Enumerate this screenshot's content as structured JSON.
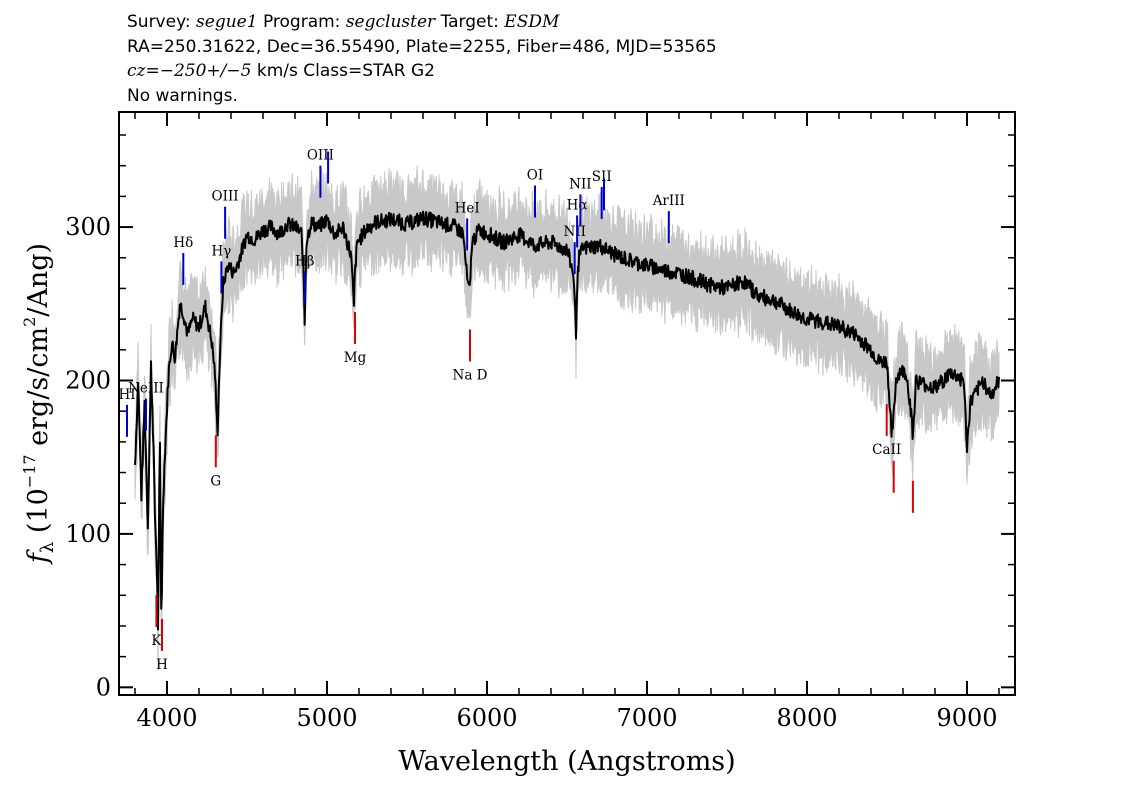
{
  "header": {
    "survey_label": "Survey:",
    "survey": "segue1",
    "program_label": "Program:",
    "program": "segcluster",
    "target_label": "Target:",
    "target": "ESDM",
    "line2": "RA=250.31622, Dec=36.55490, Plate=2255, Fiber=486, MJD=53565",
    "cz_label": "cz=",
    "cz_value": "−250+/−5",
    "cz_unit": "km/s Class=STAR G2",
    "warnings": "No warnings."
  },
  "chart_data": {
    "type": "line",
    "xlabel": "Wavelength (Angstroms)",
    "ylabel": "f_λ (10^-17 erg/s/cm^2/Ang)",
    "xlim": [
      3700,
      9300
    ],
    "ylim": [
      -5,
      375
    ],
    "x_ticks": [
      4000,
      5000,
      6000,
      7000,
      8000,
      9000
    ],
    "y_ticks": [
      0,
      100,
      200,
      300
    ],
    "colors": {
      "flux": "#000000",
      "error": "#c8c8c8",
      "emission": "#0000cc",
      "absorption": "#dd0000"
    },
    "series": [
      {
        "role": "flux",
        "x": [
          3800,
          3820,
          3840,
          3860,
          3880,
          3900,
          3915,
          3925,
          3935,
          3945,
          3955,
          3965,
          3975,
          3990,
          4010,
          4030,
          4050,
          4080,
          4100,
          4130,
          4160,
          4200,
          4240,
          4280,
          4300,
          4315,
          4330,
          4350,
          4380,
          4420,
          4460,
          4500,
          4550,
          4600,
          4650,
          4700,
          4750,
          4800,
          4840,
          4855,
          4861,
          4870,
          4900,
          4950,
          5000,
          5050,
          5100,
          5150,
          5168,
          5175,
          5190,
          5250,
          5300,
          5400,
          5500,
          5600,
          5700,
          5800,
          5850,
          5880,
          5893,
          5905,
          5950,
          6000,
          6100,
          6200,
          6300,
          6400,
          6500,
          6540,
          6556,
          6563,
          6575,
          6600,
          6700,
          6800,
          6900,
          7000,
          7100,
          7200,
          7300,
          7400,
          7500,
          7600,
          7700,
          7800,
          7900,
          8000,
          8100,
          8200,
          8300,
          8400,
          8450,
          8500,
          8530,
          8542,
          8555,
          8580,
          8620,
          8650,
          8662,
          8680,
          8720,
          8800,
          8900,
          8980,
          9000,
          9020,
          9100,
          9150,
          9200
        ],
        "y": [
          145,
          200,
          125,
          185,
          105,
          210,
          160,
          110,
          85,
          35,
          170,
          40,
          120,
          160,
          205,
          225,
          215,
          250,
          245,
          230,
          240,
          235,
          248,
          225,
          205,
          165,
          215,
          262,
          275,
          270,
          282,
          295,
          292,
          298,
          300,
          296,
          302,
          300,
          296,
          265,
          232,
          290,
          303,
          300,
          305,
          295,
          300,
          282,
          248,
          272,
          290,
          299,
          303,
          305,
          302,
          306,
          303,
          300,
          296,
          262,
          258,
          290,
          298,
          296,
          290,
          295,
          288,
          290,
          285,
          270,
          232,
          262,
          280,
          286,
          288,
          282,
          278,
          275,
          272,
          270,
          266,
          262,
          260,
          265,
          255,
          252,
          245,
          240,
          238,
          235,
          230,
          220,
          212,
          212,
          165,
          175,
          200,
          206,
          205,
          180,
          162,
          200,
          198,
          195,
          205,
          200,
          155,
          185,
          200,
          190,
          200
        ]
      }
    ],
    "lines": [
      {
        "label": "HI",
        "wavelength": 3750,
        "type": "emission"
      },
      {
        "label": "NeIII",
        "wavelength": 3869,
        "type": "emission"
      },
      {
        "label": "Hδ",
        "wavelength": 4102,
        "type": "emission"
      },
      {
        "label": "Hγ",
        "wavelength": 4340,
        "type": "emission"
      },
      {
        "label": "OIII",
        "wavelength": 4363,
        "type": "emission"
      },
      {
        "label": "Hβ",
        "wavelength": 4861,
        "type": "emission"
      },
      {
        "label": "OIII",
        "wavelength": 4959,
        "type": "emission"
      },
      {
        "label": "OIII",
        "wavelength": 5007,
        "type": "emission",
        "no_label": true
      },
      {
        "label": "HeI",
        "wavelength": 5876,
        "type": "emission"
      },
      {
        "label": "OI",
        "wavelength": 6300,
        "type": "emission"
      },
      {
        "label": "NII",
        "wavelength": 6548,
        "type": "emission"
      },
      {
        "label": "Hα",
        "wavelength": 6563,
        "type": "emission"
      },
      {
        "label": "NII",
        "wavelength": 6584,
        "type": "emission"
      },
      {
        "label": "SII",
        "wavelength": 6717,
        "type": "emission"
      },
      {
        "label": "SII",
        "wavelength": 6731,
        "type": "emission",
        "no_label": true
      },
      {
        "label": "ArIII",
        "wavelength": 7136,
        "type": "emission"
      },
      {
        "label": "K",
        "wavelength": 3934,
        "type": "absorption"
      },
      {
        "label": "H",
        "wavelength": 3969,
        "type": "absorption"
      },
      {
        "label": "G",
        "wavelength": 4305,
        "type": "absorption"
      },
      {
        "label": "Mg",
        "wavelength": 5175,
        "type": "absorption"
      },
      {
        "label": "Na D",
        "wavelength": 5894,
        "type": "absorption"
      },
      {
        "label": "CaII",
        "wavelength": 8498,
        "type": "absorption"
      },
      {
        "label": "CaII",
        "wavelength": 8542,
        "type": "absorption",
        "no_label": true
      },
      {
        "label": "CaII",
        "wavelength": 8662,
        "type": "absorption",
        "no_label": true
      }
    ]
  }
}
